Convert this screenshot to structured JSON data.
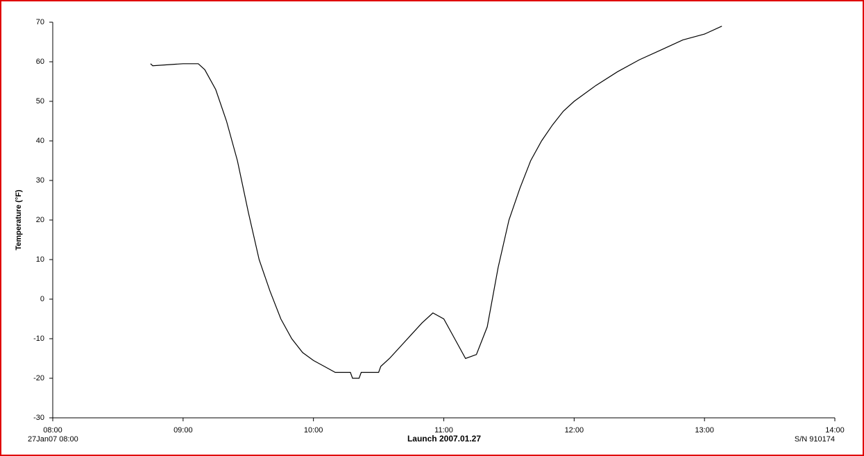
{
  "chart_data": {
    "type": "line",
    "y_label": "Temperature (°F)",
    "x_label": "Launch 2007.01.27",
    "start_label": "27Jan07 08:00",
    "serial_label": "S/N 910174",
    "x": [
      "08:45",
      "08:46",
      "09:00",
      "09:07",
      "09:10",
      "09:15",
      "09:20",
      "09:25",
      "09:30",
      "09:35",
      "09:40",
      "09:45",
      "09:50",
      "09:55",
      "10:00",
      "10:05",
      "10:10",
      "10:17",
      "10:18",
      "10:21",
      "10:22",
      "10:30",
      "10:31",
      "10:35",
      "10:40",
      "10:45",
      "10:50",
      "10:55",
      "11:00",
      "11:05",
      "11:10",
      "11:15",
      "11:20",
      "11:25",
      "11:30",
      "11:35",
      "11:40",
      "11:45",
      "11:50",
      "11:55",
      "12:00",
      "12:10",
      "12:20",
      "12:30",
      "12:40",
      "12:50",
      "13:00",
      "13:08"
    ],
    "values": [
      59.5,
      59,
      59.5,
      59.5,
      58,
      53,
      45,
      35,
      22,
      10,
      2,
      -5,
      -10,
      -13.5,
      -15.5,
      -17,
      -18.5,
      -18.5,
      -20,
      -20,
      -18.5,
      -18.5,
      -17,
      -15,
      -12,
      -9,
      -6,
      -3.5,
      -5,
      -10,
      -15,
      -14,
      -7,
      8,
      20,
      28,
      35,
      40,
      44,
      47.5,
      50,
      54,
      57.5,
      60.5,
      63,
      65.5,
      67,
      69
    ],
    "color": "#000000",
    "xlim": [
      "08:00",
      "14:00"
    ],
    "xticks": [
      "08:00",
      "09:00",
      "10:00",
      "11:00",
      "12:00",
      "13:00",
      "14:00"
    ],
    "ylim": [
      -30,
      70
    ],
    "yticks": [
      -30,
      -20,
      -10,
      0,
      10,
      20,
      30,
      40,
      50,
      60,
      70
    ]
  }
}
